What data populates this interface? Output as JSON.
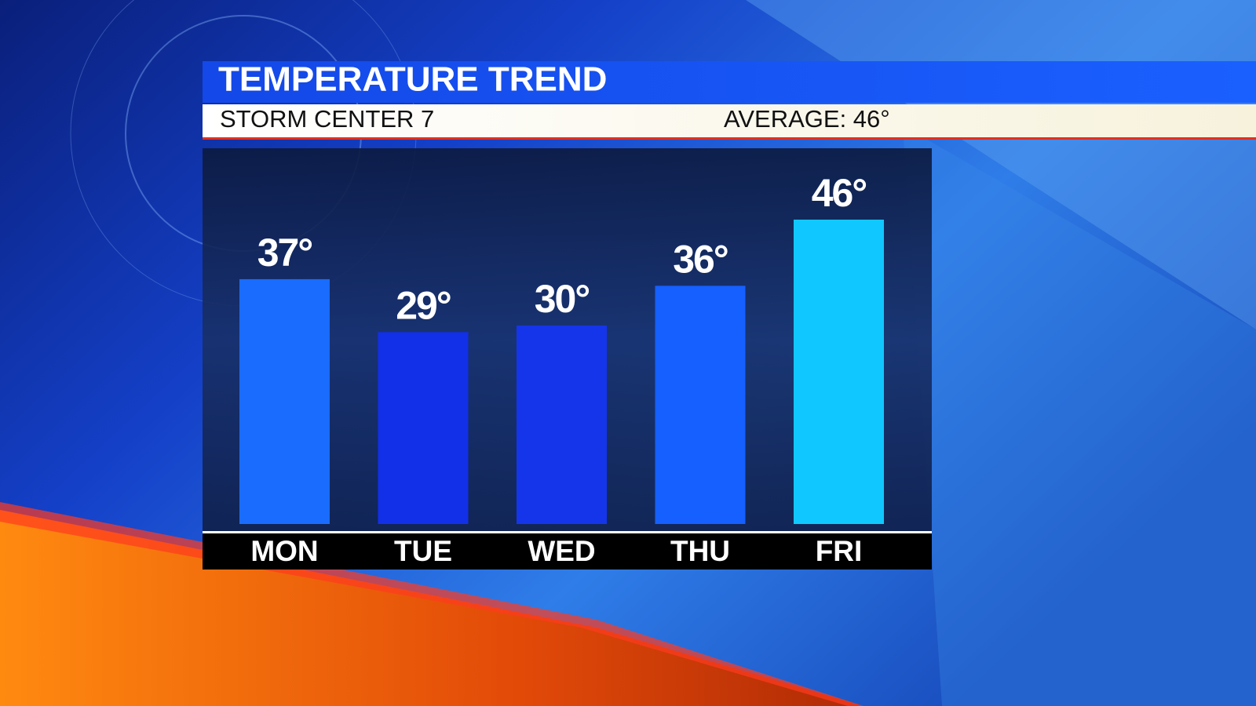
{
  "chart_data": {
    "type": "bar",
    "title": "TEMPERATURE TREND",
    "subtitle": "STORM CENTER 7",
    "annotation": "AVERAGE: 46°",
    "categories": [
      "MON",
      "TUE",
      "WED",
      "THU",
      "FRI"
    ],
    "values": [
      37,
      29,
      30,
      36,
      46
    ],
    "value_labels": [
      "37°",
      "29°",
      "30°",
      "36°",
      "46°"
    ],
    "colors": [
      "#1a6cff",
      "#1230e8",
      "#1535ea",
      "#1560ff",
      "#10c8ff"
    ]
  }
}
